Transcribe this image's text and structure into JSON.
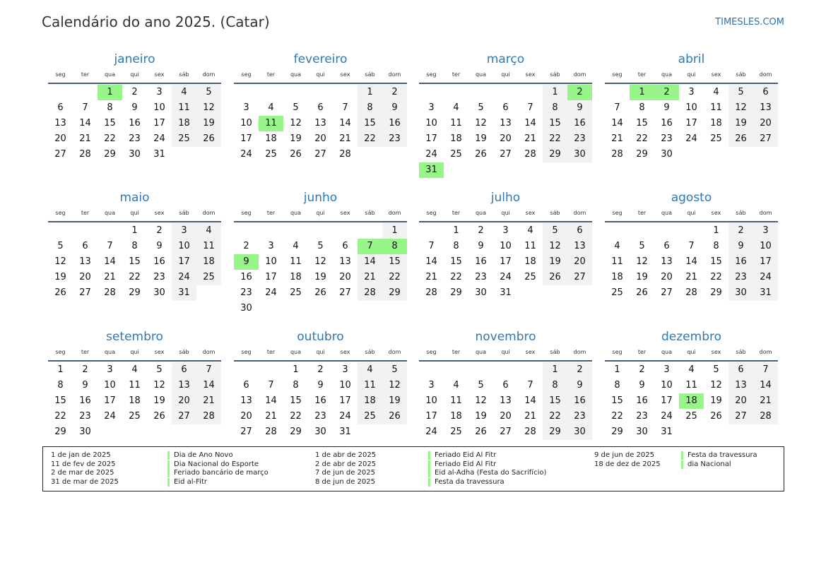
{
  "title": "Calendário do ano 2025. (Catar)",
  "site": "TIMESLES.COM",
  "year": 2025,
  "weekdays": [
    "seg",
    "ter",
    "qua",
    "qui",
    "sex",
    "sáb",
    "dom"
  ],
  "colors": {
    "holiday": "#98f58a",
    "weekend": "#f2f2f2",
    "month_title": "#2f78b4"
  },
  "months": [
    {
      "name": "janeiro",
      "first_weekday": 2,
      "days": 31,
      "holidays": [
        1
      ]
    },
    {
      "name": "fevereiro",
      "first_weekday": 5,
      "days": 28,
      "holidays": [
        11
      ]
    },
    {
      "name": "março",
      "first_weekday": 5,
      "days": 31,
      "holidays": [
        2,
        31
      ]
    },
    {
      "name": "abril",
      "first_weekday": 1,
      "days": 30,
      "holidays": [
        1,
        2
      ]
    },
    {
      "name": "maio",
      "first_weekday": 3,
      "days": 31,
      "holidays": []
    },
    {
      "name": "junho",
      "first_weekday": 6,
      "days": 30,
      "holidays": [
        7,
        8,
        9
      ]
    },
    {
      "name": "julho",
      "first_weekday": 1,
      "days": 31,
      "holidays": []
    },
    {
      "name": "agosto",
      "first_weekday": 4,
      "days": 31,
      "holidays": []
    },
    {
      "name": "setembro",
      "first_weekday": 0,
      "days": 30,
      "holidays": []
    },
    {
      "name": "outubro",
      "first_weekday": 2,
      "days": 31,
      "holidays": []
    },
    {
      "name": "novembro",
      "first_weekday": 5,
      "days": 30,
      "holidays": []
    },
    {
      "name": "dezembro",
      "first_weekday": 0,
      "days": 31,
      "holidays": [
        18
      ]
    }
  ],
  "legend": [
    [
      {
        "date": "1 de jan de 2025",
        "name": "Dia de Ano Novo"
      },
      {
        "date": "11 de fev de 2025",
        "name": "Dia Nacional do Esporte"
      },
      {
        "date": "2 de mar de 2025",
        "name": "Feriado bancário de março"
      },
      {
        "date": "31 de mar de 2025",
        "name": "Eid al-Fitr"
      }
    ],
    [
      {
        "date": "1 de abr de 2025",
        "name": "Feriado Eid Al Fitr"
      },
      {
        "date": "2 de abr de 2025",
        "name": "Feriado Eid Al Fitr"
      },
      {
        "date": "7 de jun de 2025",
        "name": "Eid al-Adha (Festa do Sacrifício)"
      },
      {
        "date": "8 de jun de 2025",
        "name": "Festa da travessura"
      }
    ],
    [
      {
        "date": "9 de jun de 2025",
        "name": "Festa da travessura"
      },
      {
        "date": "18 de dez de 2025",
        "name": "dia Nacional"
      }
    ]
  ]
}
